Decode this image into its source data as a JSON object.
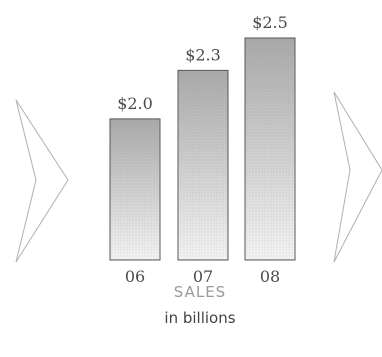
{
  "chart_data": {
    "type": "bar",
    "categories": [
      "06",
      "07",
      "08"
    ],
    "values": [
      2.0,
      2.3,
      2.5
    ],
    "data_labels": [
      "$2.0",
      "$2.3",
      "$2.5"
    ],
    "title": "SALES",
    "subtitle": "in billions",
    "xlabel": "",
    "ylabel": "",
    "ylim": [
      0,
      2.5
    ],
    "grid": false,
    "bar_fill_top": "#a9a9a9",
    "bar_fill_bottom": "#f4f4f4",
    "bar_stroke": "#555555"
  },
  "nav": {
    "prev_icon": "chevron-left-icon",
    "next_icon": "chevron-right-icon"
  }
}
